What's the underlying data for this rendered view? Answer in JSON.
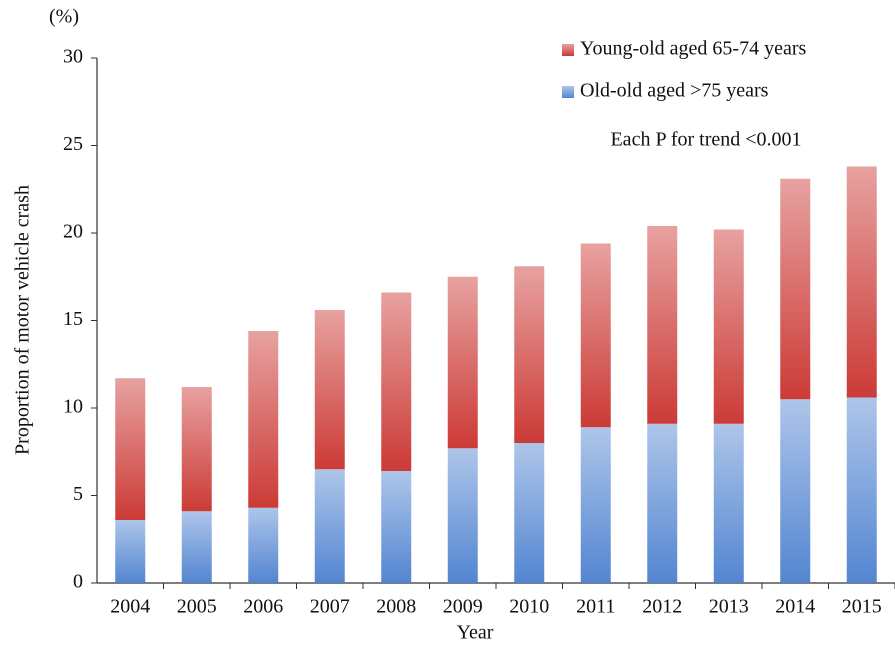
{
  "chart_data": {
    "type": "stacked_bar",
    "y_axis_unit": "(%)",
    "ylabel": "Proportion of motor vehicle crash",
    "xlabel": "Year",
    "annotation": "Each P for trend <0.001",
    "categories": [
      "2004",
      "2005",
      "2006",
      "2007",
      "2008",
      "2009",
      "2010",
      "2011",
      "2012",
      "2013",
      "2014",
      "2015"
    ],
    "series": [
      {
        "name": "Young-old aged 65-74 years",
        "color": "#c9302c",
        "values": [
          8.1,
          7.1,
          10.1,
          9.1,
          10.2,
          9.8,
          10.1,
          10.5,
          11.3,
          11.1,
          12.6,
          13.2
        ]
      },
      {
        "name": "Old-old aged >75 years",
        "color": "#4a7fcf",
        "values": [
          3.6,
          4.1,
          4.3,
          6.5,
          6.4,
          7.7,
          8.0,
          8.9,
          9.1,
          9.1,
          10.5,
          10.6
        ]
      }
    ],
    "ylim": [
      0,
      30
    ],
    "yticks": [
      0,
      5,
      10,
      15,
      20,
      25,
      30
    ],
    "grid": false
  }
}
